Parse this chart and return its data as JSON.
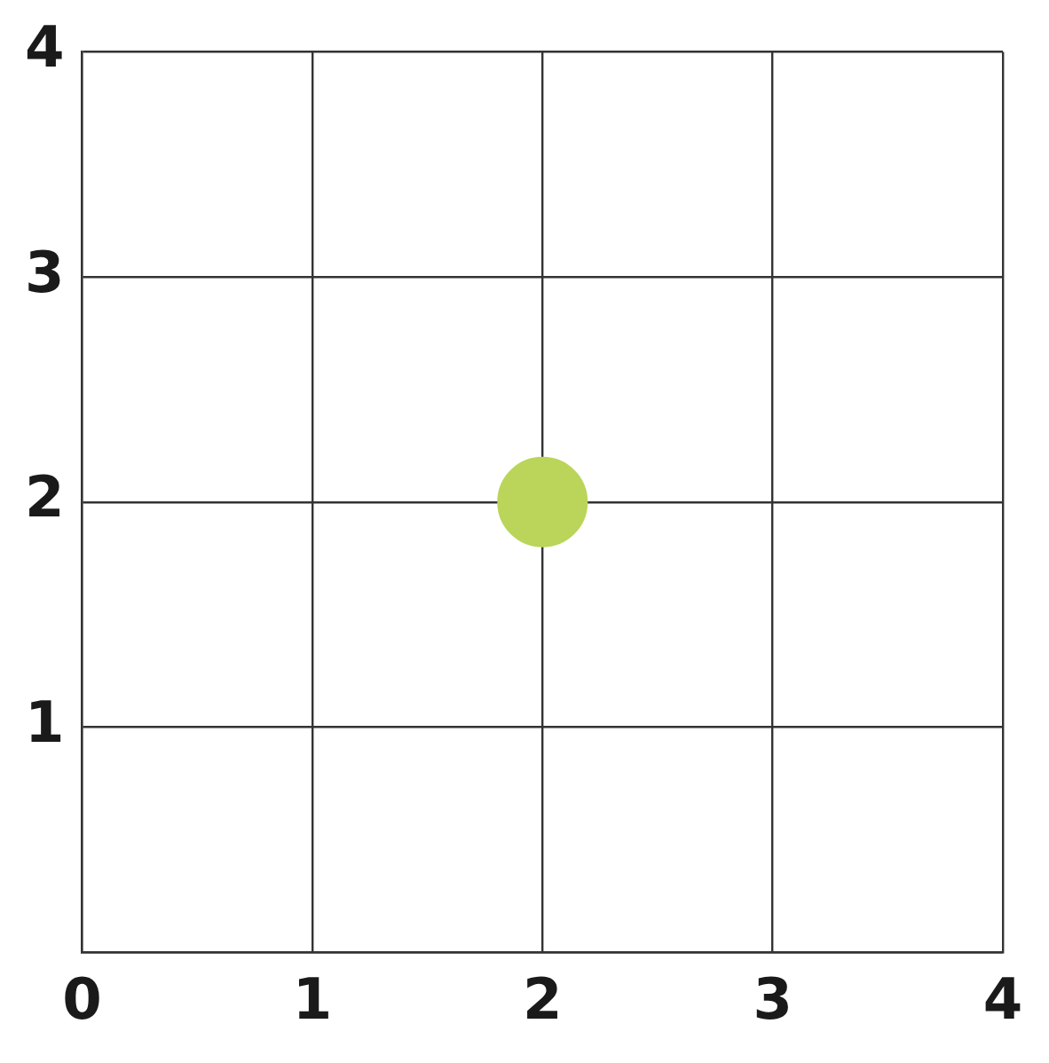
{
  "chart_data": {
    "type": "scatter",
    "x": [
      2
    ],
    "values": [
      2
    ],
    "color": "#bad55a",
    "marker": "circle",
    "xlim": [
      0,
      4
    ],
    "ylim": [
      0,
      4
    ],
    "xticks": [
      0,
      1,
      2,
      3,
      4
    ],
    "yticks": [
      {
        "value": 0,
        "label": null
      },
      1,
      2,
      3,
      4
    ],
    "grid": true
  }
}
